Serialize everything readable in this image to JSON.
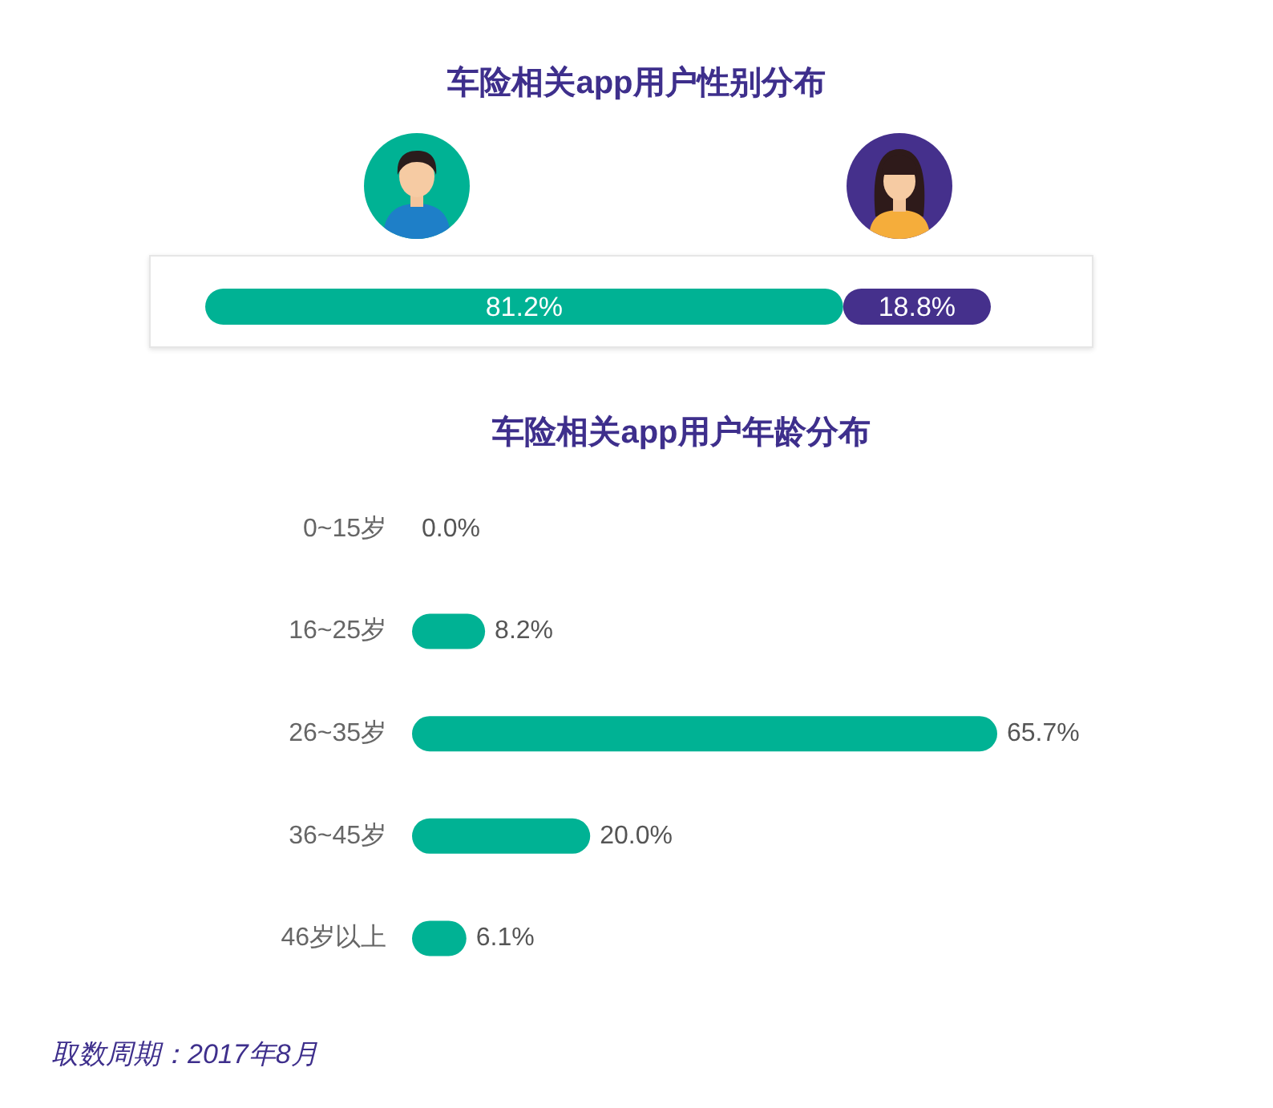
{
  "chart_data": [
    {
      "type": "bar",
      "title": "车险相关app用户性别分布",
      "orientation": "horizontal",
      "stacked": true,
      "categories": [
        null
      ],
      "series": [
        {
          "color": "#00b294",
          "values": [
            81.2
          ],
          "value_labels": [
            "81.2%"
          ]
        },
        {
          "color": "#45308c",
          "values": [
            18.8
          ],
          "value_labels": [
            "18.8%"
          ]
        }
      ]
    },
    {
      "type": "bar",
      "title": "车险相关app用户年龄分布",
      "orientation": "horizontal",
      "categories": [
        "0~15岁",
        "16~25岁",
        "26~35岁",
        "36~45岁",
        "46岁以上"
      ],
      "values": [
        0.0,
        8.2,
        65.7,
        20.0,
        6.1
      ],
      "color": "#00b294",
      "value_labels": [
        "0.0%",
        "8.2%",
        "65.7%",
        "20.0%",
        "6.1%"
      ],
      "annotations": [
        "取数周期：2017年8月"
      ]
    }
  ]
}
